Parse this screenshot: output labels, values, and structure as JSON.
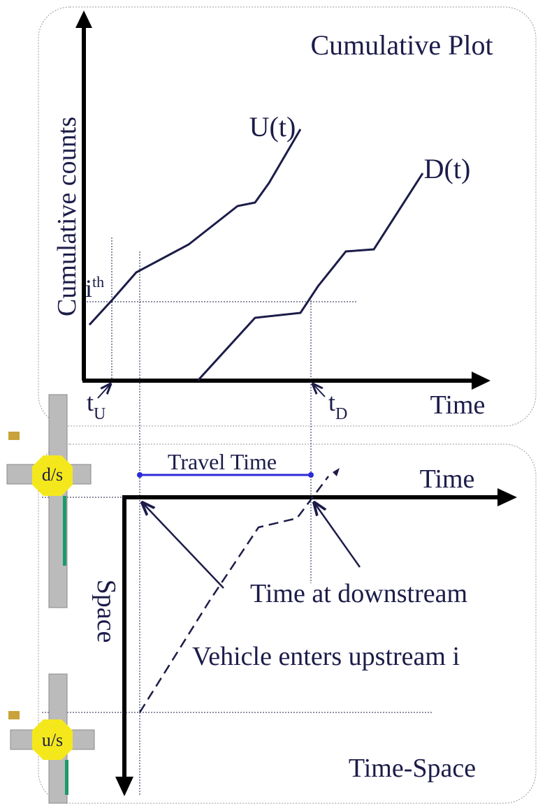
{
  "top_panel": {
    "title": "Cumulative Plot",
    "y_axis_label": "Cumulative counts",
    "x_axis_label": "Time",
    "curve_labels": [
      "U(t)",
      "D(t)"
    ],
    "ith_label": {
      "base": "i",
      "sup": "th"
    },
    "tU_label": {
      "base": "t",
      "sub": "U"
    },
    "tD_label": {
      "base": "t",
      "sub": "D"
    }
  },
  "bottom_panel": {
    "title": "Time-Space",
    "x_axis_label": "Time",
    "y_axis_label": "Space",
    "travel_time": "Travel Time",
    "annotations": [
      "Time at downstream",
      "Vehicle enters upstream i"
    ],
    "intersections": [
      "d/s",
      "u/s"
    ]
  }
}
